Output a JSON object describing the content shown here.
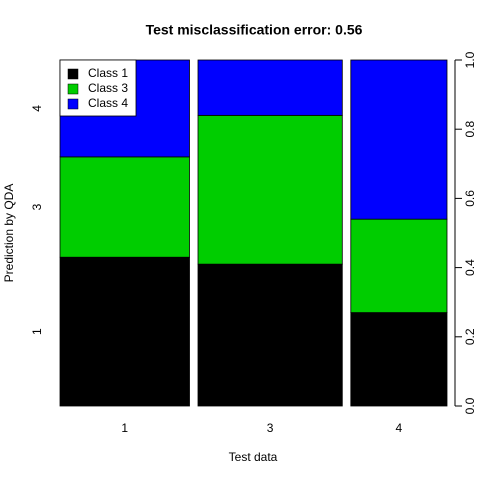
{
  "chart_data": {
    "type": "mosaic",
    "title": "Test misclassification error: 0.56",
    "x_label": "Test data",
    "y_label": "Prediction by QDA",
    "categories": [
      "1",
      "3",
      "4"
    ],
    "widths": [
      0.35,
      0.39,
      0.26
    ],
    "y_categories": [
      "1",
      "3",
      "4"
    ],
    "series": [
      {
        "name": "Class 1",
        "color": "#000000",
        "values": [
          0.43,
          0.41,
          0.27
        ]
      },
      {
        "name": "Class 3",
        "color": "#00cd00",
        "values": [
          0.29,
          0.43,
          0.27
        ]
      },
      {
        "name": "Class 4",
        "color": "#0000ff",
        "values": [
          0.28,
          0.16,
          0.46
        ]
      }
    ],
    "y2lim": [
      0,
      1
    ],
    "y2ticks": [
      {
        "value": 0,
        "label": "0.0"
      },
      0.2,
      0.4,
      0.6,
      0.8,
      {
        "value": 1,
        "label": "1.0"
      }
    ],
    "legend": "top-left"
  }
}
